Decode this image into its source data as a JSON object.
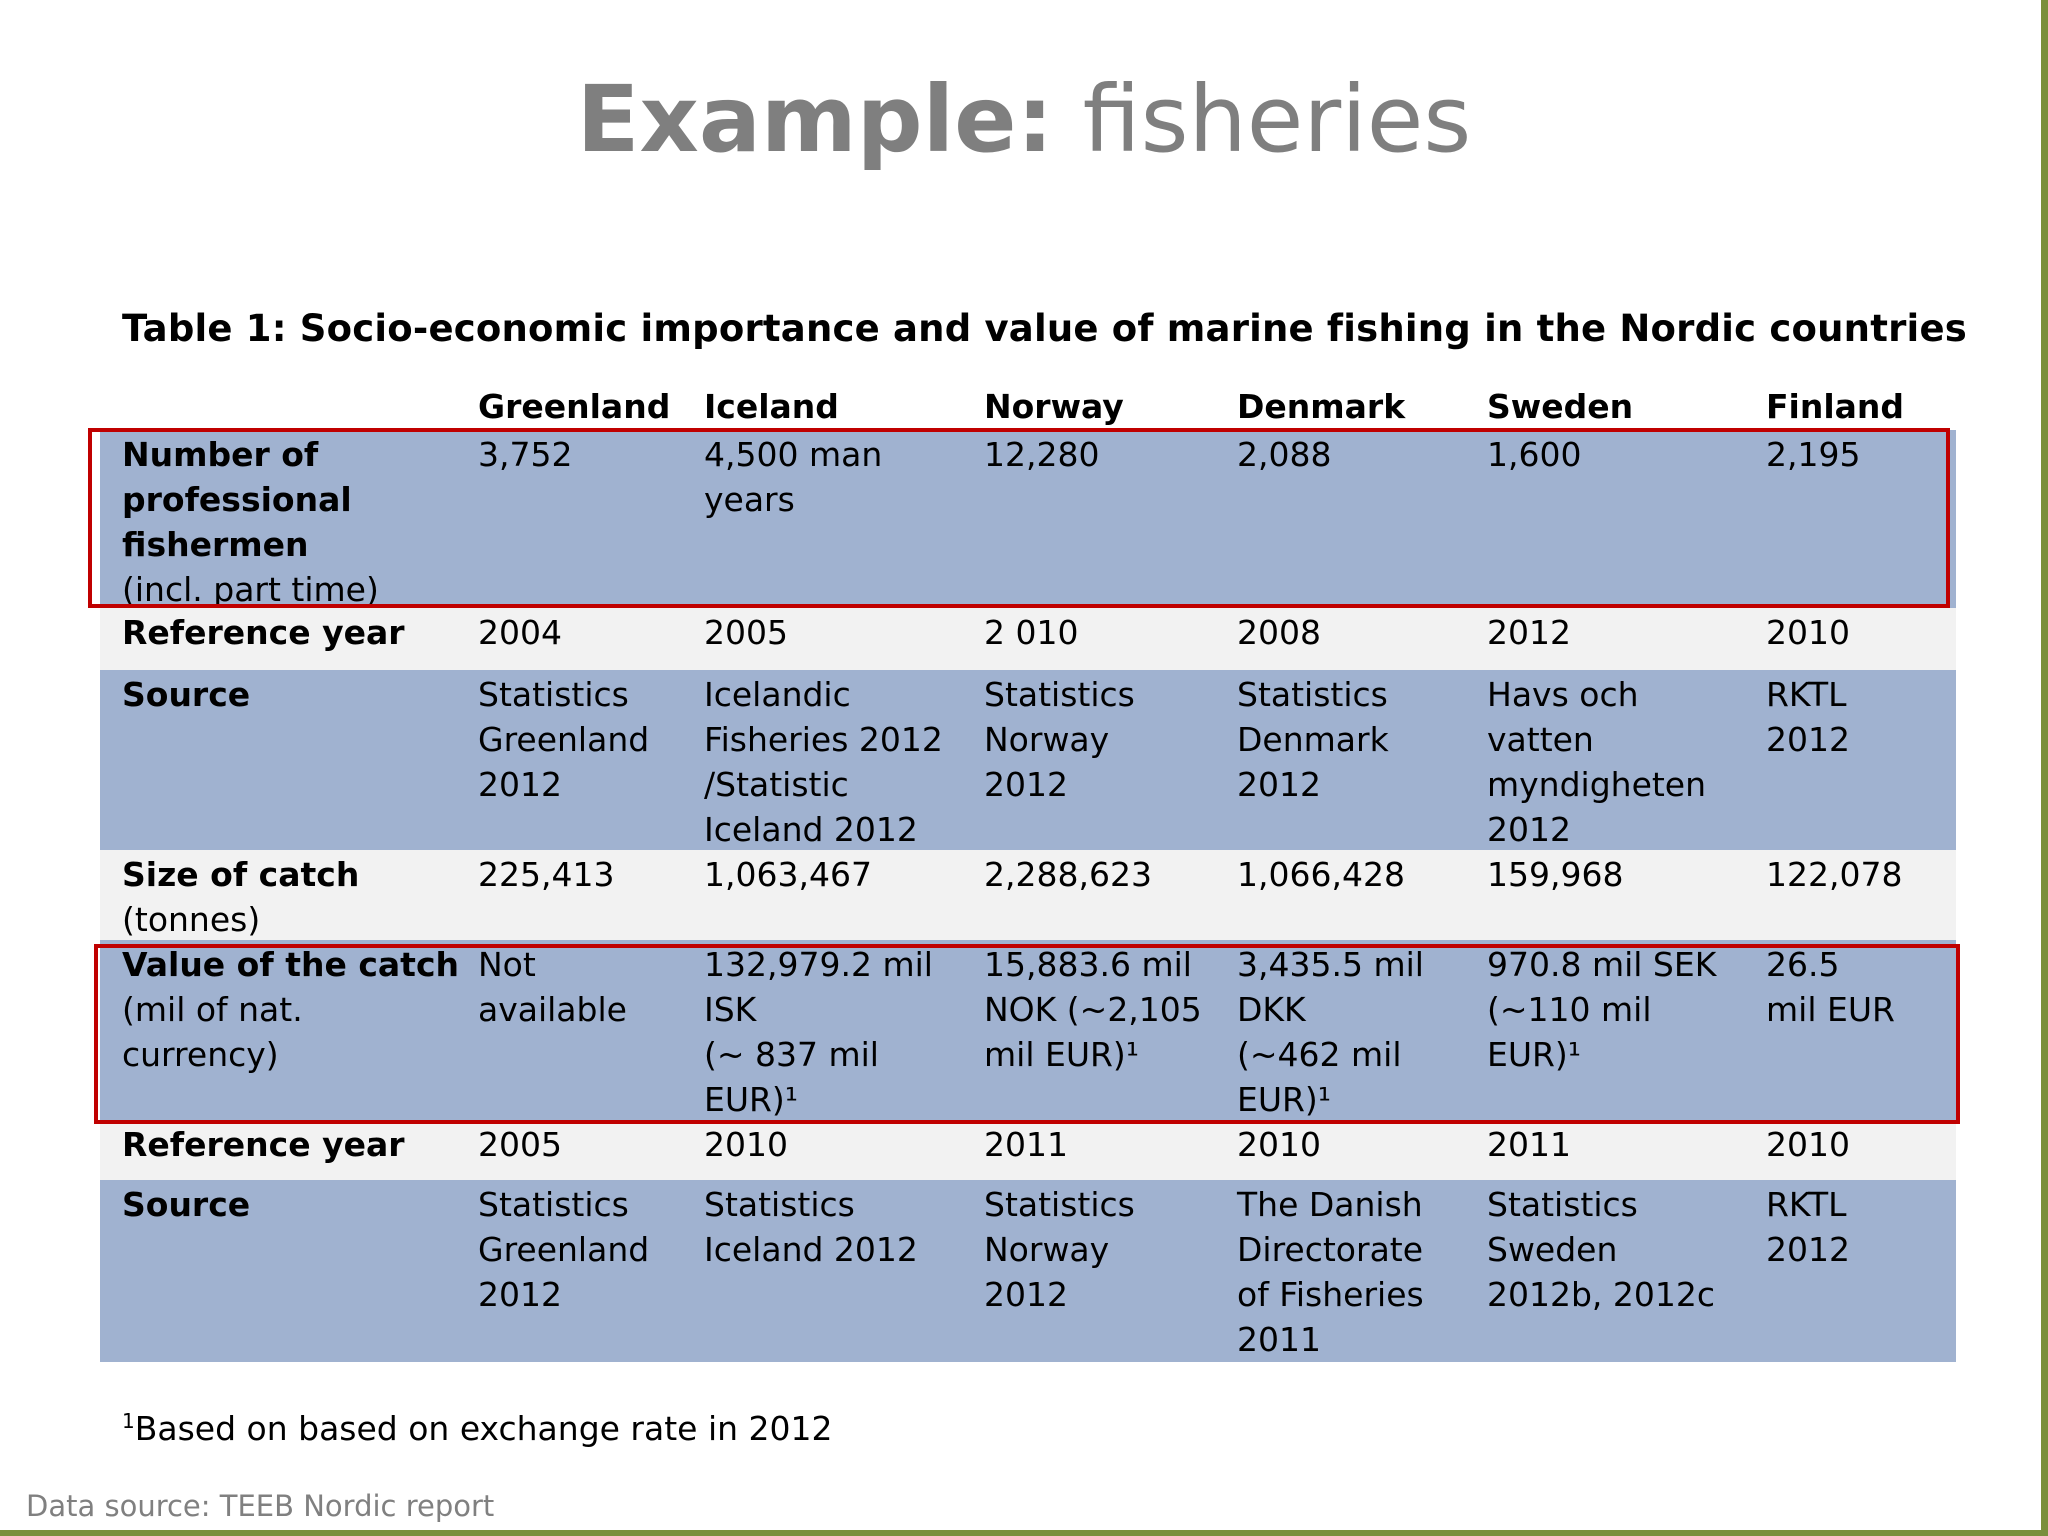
{
  "slide": {
    "title_bold": "Example:",
    "title_rest": " fisheries"
  },
  "table": {
    "caption": "Table 1: Socio-economic importance and value of marine fishing in the Nordic countries",
    "columns": [
      "Greenland",
      "Iceland",
      "Norway",
      "Denmark",
      "Sweden",
      "Finland"
    ],
    "rows": [
      {
        "label_bold": [
          "Number of",
          "professional",
          "fishermen"
        ],
        "label_normal": [
          "(incl. part time)"
        ],
        "cells": [
          [
            "3,752"
          ],
          [
            "4,500 man",
            "years"
          ],
          [
            "12,280"
          ],
          [
            "2,088"
          ],
          [
            "1,600"
          ],
          [
            "2,195"
          ]
        ]
      },
      {
        "label_bold": [
          "Reference year"
        ],
        "label_normal": [],
        "cells": [
          [
            "2004"
          ],
          [
            "2005"
          ],
          [
            "2 010"
          ],
          [
            "2008"
          ],
          [
            "2012"
          ],
          [
            "2010"
          ]
        ]
      },
      {
        "label_bold": [
          "Source"
        ],
        "label_normal": [],
        "cells": [
          [
            "Statistics",
            "Greenland",
            "2012"
          ],
          [
            "Icelandic",
            "Fisheries 2012",
            "/Statistic",
            "Iceland 2012"
          ],
          [
            "Statistics",
            "Norway",
            "2012"
          ],
          [
            "Statistics",
            "Denmark",
            "2012"
          ],
          [
            "Havs och",
            "vatten",
            "myndigheten",
            "2012"
          ],
          [
            "RKTL",
            "2012"
          ]
        ]
      },
      {
        "label_bold": [
          "Size of catch"
        ],
        "label_normal": [
          "(tonnes)"
        ],
        "cells": [
          [
            "225,413"
          ],
          [
            "1,063,467"
          ],
          [
            "2,288,623"
          ],
          [
            "1,066,428"
          ],
          [
            "159,968"
          ],
          [
            "122,078"
          ]
        ]
      },
      {
        "label_bold": [
          "Value of the catch"
        ],
        "label_normal": [
          "(mil of nat.",
          "currency)"
        ],
        "cells": [
          [
            "Not",
            "available"
          ],
          [
            "132,979.2 mil",
            "ISK",
            "(~ 837 mil",
            "EUR)¹"
          ],
          [
            "15,883.6 mil",
            "NOK (~2,105",
            "mil EUR)¹"
          ],
          [
            "3,435.5 mil",
            "DKK",
            "(~462 mil",
            "EUR)¹"
          ],
          [
            "970.8 mil SEK",
            "(~110 mil",
            "EUR)¹"
          ],
          [
            "26.5",
            "mil EUR"
          ]
        ]
      },
      {
        "label_bold": [
          "Reference year"
        ],
        "label_normal": [],
        "cells": [
          [
            "2005"
          ],
          [
            "2010"
          ],
          [
            "2011"
          ],
          [
            "2010"
          ],
          [
            "2011"
          ],
          [
            "2010"
          ]
        ]
      },
      {
        "label_bold": [
          "Source"
        ],
        "label_normal": [],
        "cells": [
          [
            "Statistics",
            "Greenland",
            "2012"
          ],
          [
            "Statistics",
            "Iceland 2012"
          ],
          [
            "Statistics",
            "Norway",
            "2012"
          ],
          [
            "The Danish",
            "Directorate",
            "of Fisheries",
            "2011"
          ],
          [
            "Statistics",
            "Sweden",
            "2012b, 2012c"
          ],
          [
            "RKTL",
            "2012"
          ]
        ]
      }
    ]
  },
  "footnote": {
    "marker": "1",
    "text": "Based on based on exchange rate in 2012"
  },
  "data_source": "Data source: TEEB Nordic report",
  "colors": {
    "row_blue": "#a0b2d0",
    "row_grey": "#f2f2f2",
    "highlight_red": "#c00000",
    "frame_green": "#7a8f3c"
  }
}
